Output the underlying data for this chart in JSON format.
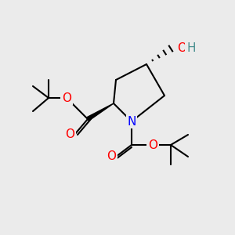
{
  "bg_color": "#ebebeb",
  "atom_colors": {
    "O": "#ff0000",
    "N": "#0000ff",
    "C": "#000000",
    "H": "#4a9090"
  },
  "bond_color": "#000000",
  "bond_width": 1.5,
  "wedge_color": "#000000",
  "dash_color": "#000000",
  "figsize": [
    3.0,
    3.0
  ],
  "dpi": 100
}
